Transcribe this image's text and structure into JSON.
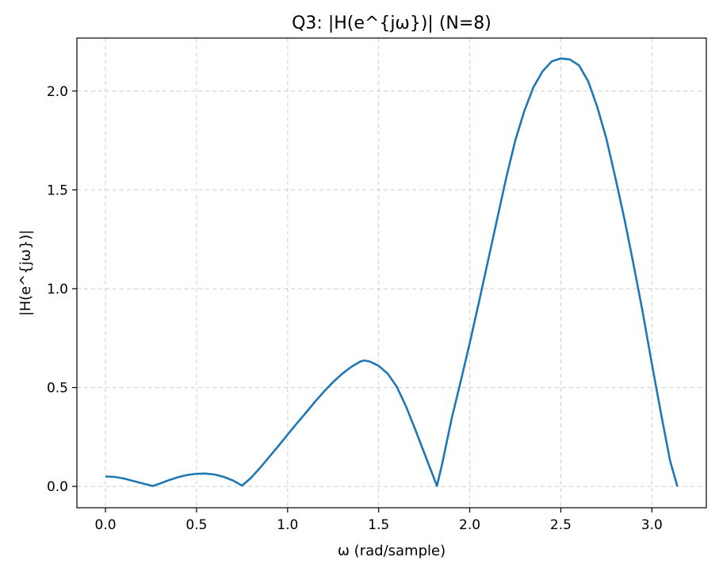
{
  "chart_data": {
    "type": "line",
    "title": "Q3: |H(e^{jω})| (N=8)",
    "xlabel": "ω (rad/sample)",
    "ylabel": "|H(e^{jω})|",
    "xlim": [
      -0.157,
      3.299
    ],
    "ylim": [
      -0.108,
      2.268
    ],
    "xticks": [
      0.0,
      0.5,
      1.0,
      1.5,
      2.0,
      2.5,
      3.0
    ],
    "xtick_labels": [
      "0.0",
      "0.5",
      "1.0",
      "1.5",
      "2.0",
      "2.5",
      "3.0"
    ],
    "yticks": [
      0.0,
      0.5,
      1.0,
      1.5,
      2.0
    ],
    "ytick_labels": [
      "0.0",
      "0.5",
      "1.0",
      "1.5",
      "2.0"
    ],
    "grid": true,
    "series": [
      {
        "color": "#1f77b4",
        "x": [
          0.0,
          0.05,
          0.1,
          0.15,
          0.2,
          0.26,
          0.3,
          0.35,
          0.4,
          0.45,
          0.5,
          0.55,
          0.6,
          0.65,
          0.7,
          0.75,
          0.8,
          0.85,
          0.9,
          0.95,
          1.0,
          1.05,
          1.1,
          1.15,
          1.2,
          1.25,
          1.3,
          1.35,
          1.4,
          1.42,
          1.45,
          1.5,
          1.55,
          1.6,
          1.65,
          1.7,
          1.75,
          1.82,
          1.85,
          1.9,
          1.95,
          2.0,
          2.05,
          2.1,
          2.15,
          2.2,
          2.25,
          2.3,
          2.35,
          2.4,
          2.45,
          2.5,
          2.55,
          2.6,
          2.65,
          2.7,
          2.75,
          2.8,
          2.85,
          2.9,
          2.95,
          3.0,
          3.05,
          3.1,
          3.14
        ],
        "y": [
          0.05,
          0.048,
          0.04,
          0.028,
          0.016,
          0.002,
          0.015,
          0.032,
          0.047,
          0.058,
          0.064,
          0.065,
          0.06,
          0.048,
          0.03,
          0.004,
          0.044,
          0.095,
          0.15,
          0.205,
          0.262,
          0.318,
          0.372,
          0.428,
          0.48,
          0.528,
          0.57,
          0.605,
          0.632,
          0.637,
          0.632,
          0.61,
          0.57,
          0.503,
          0.405,
          0.29,
          0.17,
          0.002,
          0.12,
          0.34,
          0.53,
          0.725,
          0.93,
          1.14,
          1.35,
          1.56,
          1.75,
          1.9,
          2.02,
          2.1,
          2.15,
          2.165,
          2.16,
          2.13,
          2.05,
          1.92,
          1.76,
          1.56,
          1.35,
          1.12,
          0.88,
          0.62,
          0.37,
          0.13,
          0.0
        ]
      }
    ]
  }
}
